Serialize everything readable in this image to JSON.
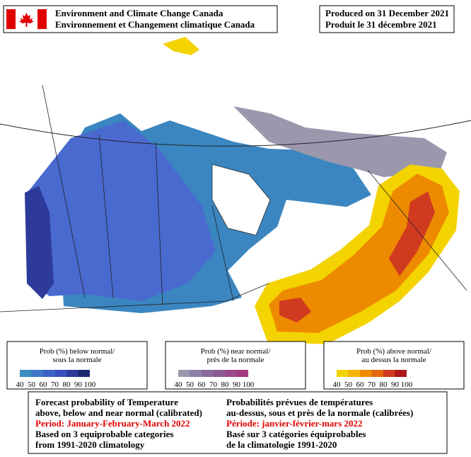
{
  "header": {
    "agency_en": "Environment and Climate Change Canada",
    "agency_fr": "Environnement et Changement climatique Canada",
    "produced_en": "Produced on 31 December 2021",
    "produced_fr": "Produit le 31 décembre 2021"
  },
  "legends": [
    {
      "title_en": "Prob (%) below normal/",
      "title_fr": "sous la normale",
      "ticks": [
        40,
        50,
        60,
        70,
        80,
        90,
        100
      ],
      "colors": [
        "#3a8fc0",
        "#3f78c9",
        "#3d62c8",
        "#3a4fbf",
        "#2e3a9a",
        "#1c2870"
      ]
    },
    {
      "title_en": "Prob (%) near normal/",
      "title_fr": "près de la normale",
      "ticks": [
        40,
        50,
        60,
        70,
        80,
        90,
        100
      ],
      "colors": [
        "#9b98ae",
        "#8e80a8",
        "#8a6b9f",
        "#8d5b95",
        "#9a4a8b",
        "#a3397e"
      ]
    },
    {
      "title_en": "Prob (%) above normal/",
      "title_fr": "au dessus la normale",
      "ticks": [
        40,
        50,
        60,
        70,
        80,
        90,
        100
      ],
      "colors": [
        "#f3d300",
        "#f5b300",
        "#ee8a00",
        "#e4680f",
        "#d03a1f",
        "#ad1818"
      ]
    }
  ],
  "description": {
    "en": [
      {
        "text": "Forecast probability of Temperature"
      },
      {
        "text": "above, below and near normal (calibrated)"
      },
      {
        "text": "Period: January-February-March 2022",
        "color": "#e00000"
      },
      {
        "text": "Based on 3 equiprobable categories"
      },
      {
        "text": " from 1991-2020 climatology"
      }
    ],
    "fr": [
      {
        "text": "Probabilités prévues de températures"
      },
      {
        "text": "au-dessus, sous et près de la normale (calibrées)"
      },
      {
        "text": "Période: janvier-février-mars 2022",
        "color": "#e00000"
      },
      {
        "text": "Basé sur 3 catégories équiprobables"
      },
      {
        "text": "de la climatologie 1991-2020"
      }
    ]
  }
}
